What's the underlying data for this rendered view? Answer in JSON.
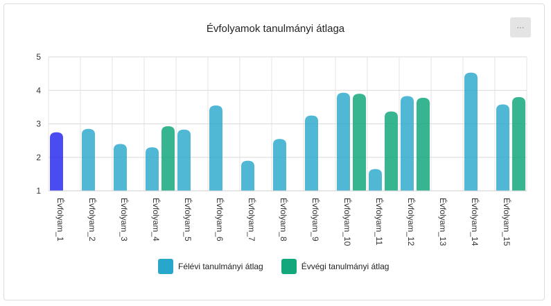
{
  "header": {
    "title": "Évfolyamok tanulmányi átlaga",
    "menu_label": "···"
  },
  "chart_data": {
    "type": "bar",
    "title": "Évfolyamok tanulmányi átlaga",
    "xlabel": "",
    "ylabel": "",
    "ylim": [
      1,
      5
    ],
    "yticks": [
      "1",
      "2",
      "3",
      "4",
      "5"
    ],
    "grid": true,
    "legend_position": "bottom",
    "categories": [
      "Évfolyam_1",
      "Évfolyam_2",
      "Évfolyam_3",
      "Évfolyam_4",
      "Évfolyam_5",
      "Évfolyam_6",
      "Évfolyam_7",
      "Évfolyam_8",
      "Évfolyam_9",
      "Évfolyam_10",
      "Évfolyam_11",
      "Évfolyam_12",
      "Évfolyam_13",
      "Évfolyam_14",
      "Évfolyam_15"
    ],
    "series": [
      {
        "name": "Félévi tanulmányi átlag",
        "color": "#29a7ca",
        "values": [
          2.75,
          2.85,
          2.4,
          2.3,
          2.83,
          3.55,
          1.9,
          2.55,
          3.25,
          3.93,
          1.65,
          3.83,
          null,
          4.53,
          3.58
        ]
      },
      {
        "name": "Évvégi tanulmányi átlag",
        "color": "#13a87c",
        "values": [
          null,
          null,
          null,
          2.93,
          null,
          null,
          null,
          null,
          null,
          3.9,
          3.37,
          3.78,
          null,
          null,
          3.8
        ]
      }
    ],
    "highlight": {
      "category_index": 0,
      "color": "#2c2cf0"
    }
  }
}
